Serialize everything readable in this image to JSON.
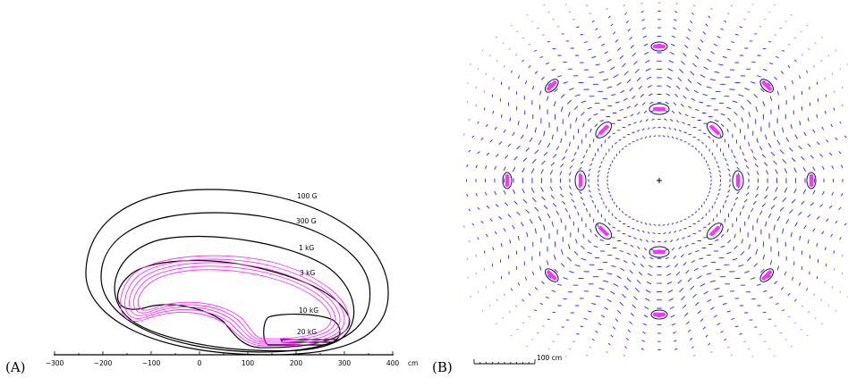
{
  "panel_a": {
    "label": "(A)",
    "axis": {
      "ticks": [
        "−300",
        "−200",
        "−100",
        "0",
        "100",
        "200",
        "300",
        "400"
      ],
      "unit": "cm"
    },
    "contour_labels": [
      "100 G",
      "300 G",
      "1 kG",
      "3 kG",
      "10 kG",
      "20 kG"
    ]
  },
  "panel_b": {
    "label": "(B)",
    "scale_bar_label": "100 cm",
    "coil_count": 8
  },
  "colors": {
    "contour": "#000000",
    "coil": "#ff33ff",
    "field_vectors": "#2020ff"
  }
}
